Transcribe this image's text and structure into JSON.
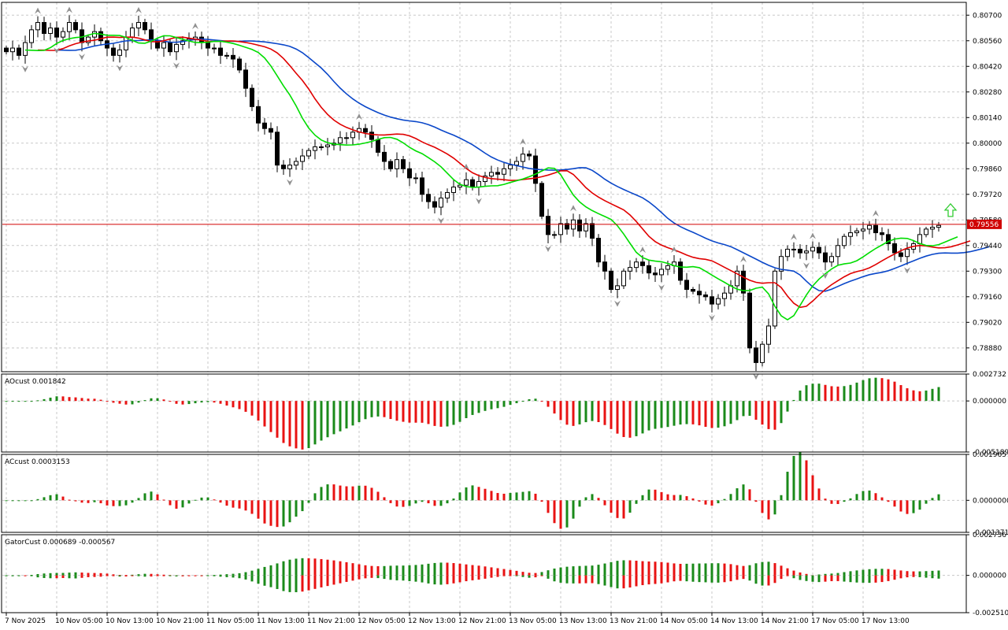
{
  "chart_data": {
    "type": "candlestick",
    "colors": {
      "background": "#ffffff",
      "grid": "#c8c8c8",
      "bull_candle": "#ffffff",
      "bear_candle": "#000000",
      "jaw": "#0a47c9",
      "teeth": "#e00000",
      "lips": "#00dd00",
      "price_line": "#d00000",
      "price_tag": "#d00000",
      "hist_up": "#1a8a1a",
      "hist_down": "#e81212",
      "fractal": "#909090",
      "signal_arrow": "#33cc33"
    },
    "price_axis": {
      "ticks": [
        "0.80700",
        "0.80560",
        "0.80420",
        "0.80280",
        "0.80140",
        "0.80000",
        "0.79860",
        "0.79720",
        "0.79580",
        "0.79440",
        "0.79300",
        "0.79160",
        "0.79020",
        "0.78880"
      ],
      "range": [
        0.7875,
        0.8077
      ],
      "current_price": "0.79556"
    },
    "time_axis": {
      "labels": [
        "7 Nov 2025",
        "10 Nov 05:00",
        "10 Nov 13:00",
        "10 Nov 21:00",
        "11 Nov 05:00",
        "11 Nov 13:00",
        "11 Nov 21:00",
        "12 Nov 05:00",
        "12 Nov 13:00",
        "12 Nov 21:00",
        "13 Nov 05:00",
        "13 Nov 13:00",
        "13 Nov 21:00",
        "14 Nov 05:00",
        "14 Nov 13:00",
        "14 Nov 21:00",
        "17 Nov 05:00",
        "17 Nov 13:00"
      ],
      "bars_per_label": 8
    },
    "candles_close": [
      0.805,
      0.8052,
      0.8048,
      0.8055,
      0.8062,
      0.8066,
      0.806,
      0.8063,
      0.8058,
      0.8061,
      0.8066,
      0.8062,
      0.8055,
      0.8058,
      0.8061,
      0.8056,
      0.8052,
      0.8048,
      0.8051,
      0.8058,
      0.8063,
      0.8066,
      0.8062,
      0.8056,
      0.8052,
      0.8055,
      0.805,
      0.8054,
      0.8056,
      0.8057,
      0.8058,
      0.8055,
      0.8052,
      0.8052,
      0.8048,
      0.8048,
      0.8046,
      0.804,
      0.803,
      0.802,
      0.8011,
      0.8008,
      0.8006,
      0.7988,
      0.7986,
      0.7988,
      0.799,
      0.7993,
      0.7996,
      0.7998,
      0.7998,
      0.7999,
      0.8,
      0.8003,
      0.8003,
      0.8006,
      0.8008,
      0.8006,
      0.8002,
      0.7995,
      0.799,
      0.7986,
      0.7991,
      0.7986,
      0.7981,
      0.7981,
      0.7972,
      0.7968,
      0.7965,
      0.797,
      0.7973,
      0.7976,
      0.7977,
      0.798,
      0.7976,
      0.7979,
      0.7982,
      0.7984,
      0.7983,
      0.7986,
      0.7988,
      0.799,
      0.7994,
      0.7993,
      0.7978,
      0.796,
      0.795,
      0.795,
      0.7956,
      0.7953,
      0.7958,
      0.7952,
      0.7956,
      0.7948,
      0.7935,
      0.793,
      0.792,
      0.7922,
      0.793,
      0.7932,
      0.7935,
      0.7933,
      0.7929,
      0.7928,
      0.7931,
      0.7933,
      0.7935,
      0.7925,
      0.792,
      0.7919,
      0.7917,
      0.7916,
      0.7912,
      0.7915,
      0.7918,
      0.7922,
      0.793,
      0.7918,
      0.7888,
      0.788,
      0.789,
      0.79,
      0.793,
      0.7938,
      0.7942,
      0.7942,
      0.794,
      0.7941,
      0.7943,
      0.794,
      0.7935,
      0.7938,
      0.7944,
      0.7949,
      0.7951,
      0.7952,
      0.7953,
      0.7955,
      0.7951,
      0.795,
      0.7945,
      0.794,
      0.7938,
      0.7942,
      0.7945,
      0.795,
      0.7953,
      0.7954,
      0.7955
    ],
    "indicators": {
      "price_window": {
        "name": "Alligator",
        "lines": [
          "jaw",
          "teeth",
          "lips"
        ]
      },
      "panels": [
        {
          "label": "AOcust 0.001842",
          "axis_ticks": [
            "0.002732",
            "0.000000",
            "-0.005189"
          ],
          "range": [
            -0.005189,
            0.002732
          ]
        },
        {
          "label": "ACcust 0.0003153",
          "axis_ticks": [
            "0.0019657",
            "0.0000000",
            "-0.0013711"
          ],
          "range": [
            -0.0013711,
            0.0019657
          ]
        },
        {
          "label": "GatorCust 0.000689 -0.000567",
          "axis_ticks": [
            "0.002736",
            "0.000000",
            "-0.002510"
          ],
          "range": [
            -0.00251,
            0.002736
          ]
        }
      ]
    }
  }
}
